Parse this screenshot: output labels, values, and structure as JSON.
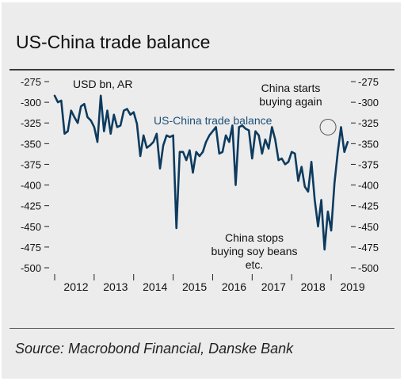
{
  "header": {
    "title": "US-China trade balance"
  },
  "footer": {
    "source": "Source: Macrobond Financial, Danske Bank"
  },
  "colors": {
    "line": "#0d3b5e",
    "label": "#1e4f7a",
    "text": "#111111",
    "background": "#ececec"
  },
  "chart_data": {
    "type": "line",
    "title": "US-China trade balance",
    "ylabel": "USD bn, AR",
    "xlabel": "",
    "ylim": [
      -500,
      -275
    ],
    "yticks": [
      -275,
      -300,
      -325,
      -350,
      -375,
      -400,
      -425,
      -450,
      -475,
      -500
    ],
    "xlim": [
      2011.9,
      2019.5
    ],
    "xticks": [
      2012,
      2013,
      2014,
      2015,
      2016,
      2017,
      2018,
      2019
    ],
    "xtick_labels": [
      "2012",
      "2013",
      "2014",
      "2015",
      "2016",
      "2017",
      "2018",
      "2019"
    ],
    "y_axis_both_sides": true,
    "grid": false,
    "legend": "none",
    "series": [
      {
        "name": "US-China trade balance",
        "x": [
          2012.0,
          2012.083,
          2012.167,
          2012.25,
          2012.333,
          2012.417,
          2012.5,
          2012.583,
          2012.667,
          2012.75,
          2012.833,
          2012.917,
          2013.0,
          2013.083,
          2013.167,
          2013.25,
          2013.333,
          2013.417,
          2013.5,
          2013.583,
          2013.667,
          2013.75,
          2013.833,
          2013.917,
          2014.0,
          2014.083,
          2014.167,
          2014.25,
          2014.333,
          2014.417,
          2014.5,
          2014.583,
          2014.667,
          2014.75,
          2014.833,
          2014.917,
          2015.0,
          2015.083,
          2015.167,
          2015.25,
          2015.333,
          2015.417,
          2015.5,
          2015.583,
          2015.667,
          2015.75,
          2015.833,
          2015.917,
          2016.0,
          2016.083,
          2016.167,
          2016.25,
          2016.333,
          2016.417,
          2016.5,
          2016.583,
          2016.667,
          2016.75,
          2016.833,
          2016.917,
          2017.0,
          2017.083,
          2017.167,
          2017.25,
          2017.333,
          2017.417,
          2017.5,
          2017.583,
          2017.667,
          2017.75,
          2017.833,
          2017.917,
          2018.0,
          2018.083,
          2018.167,
          2018.25,
          2018.333,
          2018.417,
          2018.5,
          2018.583,
          2018.667,
          2018.75,
          2018.833,
          2018.917,
          2019.0,
          2019.083,
          2019.167,
          2019.25,
          2019.333,
          2019.417
        ],
        "y": [
          -292,
          -300,
          -298,
          -338,
          -335,
          -310,
          -318,
          -325,
          -305,
          -302,
          -318,
          -322,
          -330,
          -348,
          -292,
          -335,
          -310,
          -338,
          -315,
          -330,
          -328,
          -310,
          -308,
          -315,
          -312,
          -326,
          -365,
          -340,
          -355,
          -352,
          -348,
          -338,
          -380,
          -352,
          -340,
          -342,
          -340,
          -452,
          -360,
          -360,
          -370,
          -358,
          -385,
          -360,
          -365,
          -360,
          -348,
          -340,
          -335,
          -330,
          -362,
          -360,
          -340,
          -348,
          -328,
          -400,
          -330,
          -328,
          -332,
          -334,
          -368,
          -335,
          -340,
          -362,
          -345,
          -356,
          -330,
          -345,
          -370,
          -368,
          -375,
          -372,
          -360,
          -362,
          -395,
          -378,
          -402,
          -408,
          -372,
          -418,
          -450,
          -418,
          -478,
          -432,
          -455,
          -398,
          -360,
          -330,
          -360,
          -348
        ]
      }
    ],
    "annotations": [
      {
        "text": "USD bn, AR"
      },
      {
        "text": "US-China trade balance"
      },
      {
        "text": "China starts buying again",
        "lines": [
          "China starts",
          "buying again"
        ],
        "x": 2018.92,
        "y": -330,
        "marker": "circle"
      },
      {
        "text": "China stops buying soy beans etc.",
        "lines": [
          "China stops",
          "buying soy beans",
          "etc."
        ]
      }
    ]
  }
}
